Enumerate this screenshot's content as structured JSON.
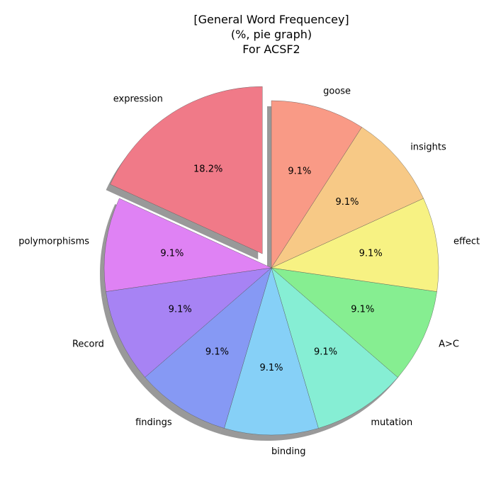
{
  "chart_data": {
    "type": "pie",
    "title_lines": [
      "[General Word Frequencey]",
      "(%, pie graph)",
      "For ACSF2"
    ],
    "start_angle_deg": 90,
    "direction": "counterclockwise",
    "shadow": true,
    "slices": [
      {
        "label": "expression",
        "value": 18.2,
        "pct_text": "18.2%",
        "color": "#f07a88",
        "explode": true
      },
      {
        "label": "polymorphisms",
        "value": 9.1,
        "pct_text": "9.1%",
        "color": "#df82f4",
        "explode": false
      },
      {
        "label": "Record",
        "value": 9.1,
        "pct_text": "9.1%",
        "color": "#a783f4",
        "explode": false
      },
      {
        "label": "findings",
        "value": 9.1,
        "pct_text": "9.1%",
        "color": "#8699f4",
        "explode": false
      },
      {
        "label": "binding",
        "value": 9.1,
        "pct_text": "9.1%",
        "color": "#86d0f7",
        "explode": false
      },
      {
        "label": "mutation",
        "value": 9.1,
        "pct_text": "9.1%",
        "color": "#86eed4",
        "explode": false
      },
      {
        "label": "A>C",
        "value": 9.1,
        "pct_text": "9.1%",
        "color": "#86ee91",
        "explode": false
      },
      {
        "label": "effect",
        "value": 9.1,
        "pct_text": "9.1%",
        "color": "#f7f283",
        "explode": false
      },
      {
        "label": "insights",
        "value": 9.1,
        "pct_text": "9.1%",
        "color": "#f7c986",
        "explode": false
      },
      {
        "label": "goose",
        "value": 9.1,
        "pct_text": "9.1%",
        "color": "#f99a86",
        "explode": false
      }
    ]
  }
}
